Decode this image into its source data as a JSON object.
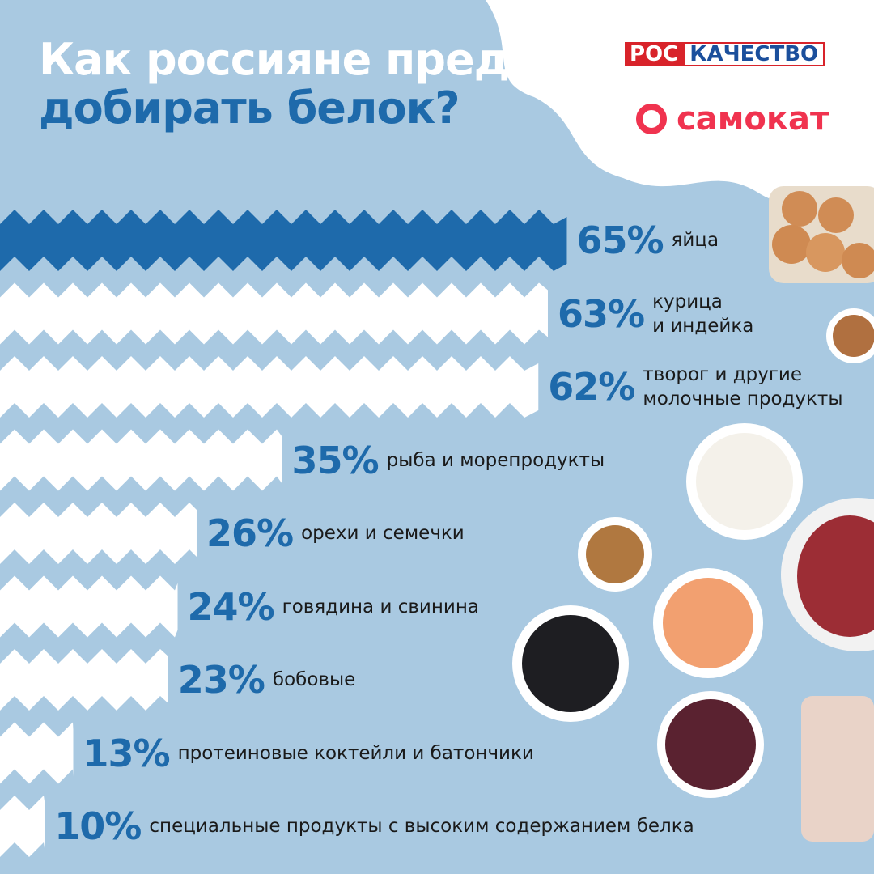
{
  "title_line1": "Как россияне предпочитают",
  "title_line2": "добирать белок?",
  "logo_left": "РОС",
  "logo_right": "КАЧЕСТВО",
  "logo2": "самокат",
  "chart_data": {
    "type": "bar",
    "orientation": "horizontal",
    "categories": [
      "яйца",
      "курица\nи индейка",
      "творог и другие\nмолочные продукты",
      "рыба и морепродукты",
      "орехи и семечки",
      "говядина и свинина",
      "бобовые",
      "протеиновые коктейли и батончики",
      "специальные продукты с высоким содержанием белка"
    ],
    "values": [
      65,
      63,
      62,
      35,
      26,
      24,
      23,
      13,
      10
    ],
    "value_labels": [
      "65%",
      "63%",
      "62%",
      "35%",
      "26%",
      "24%",
      "23%",
      "13%",
      "10%"
    ],
    "color": "#ffffff",
    "highlight_color": "#1e6aab",
    "label_color": "#1e6aab",
    "title_color": "#1e6aab"
  }
}
